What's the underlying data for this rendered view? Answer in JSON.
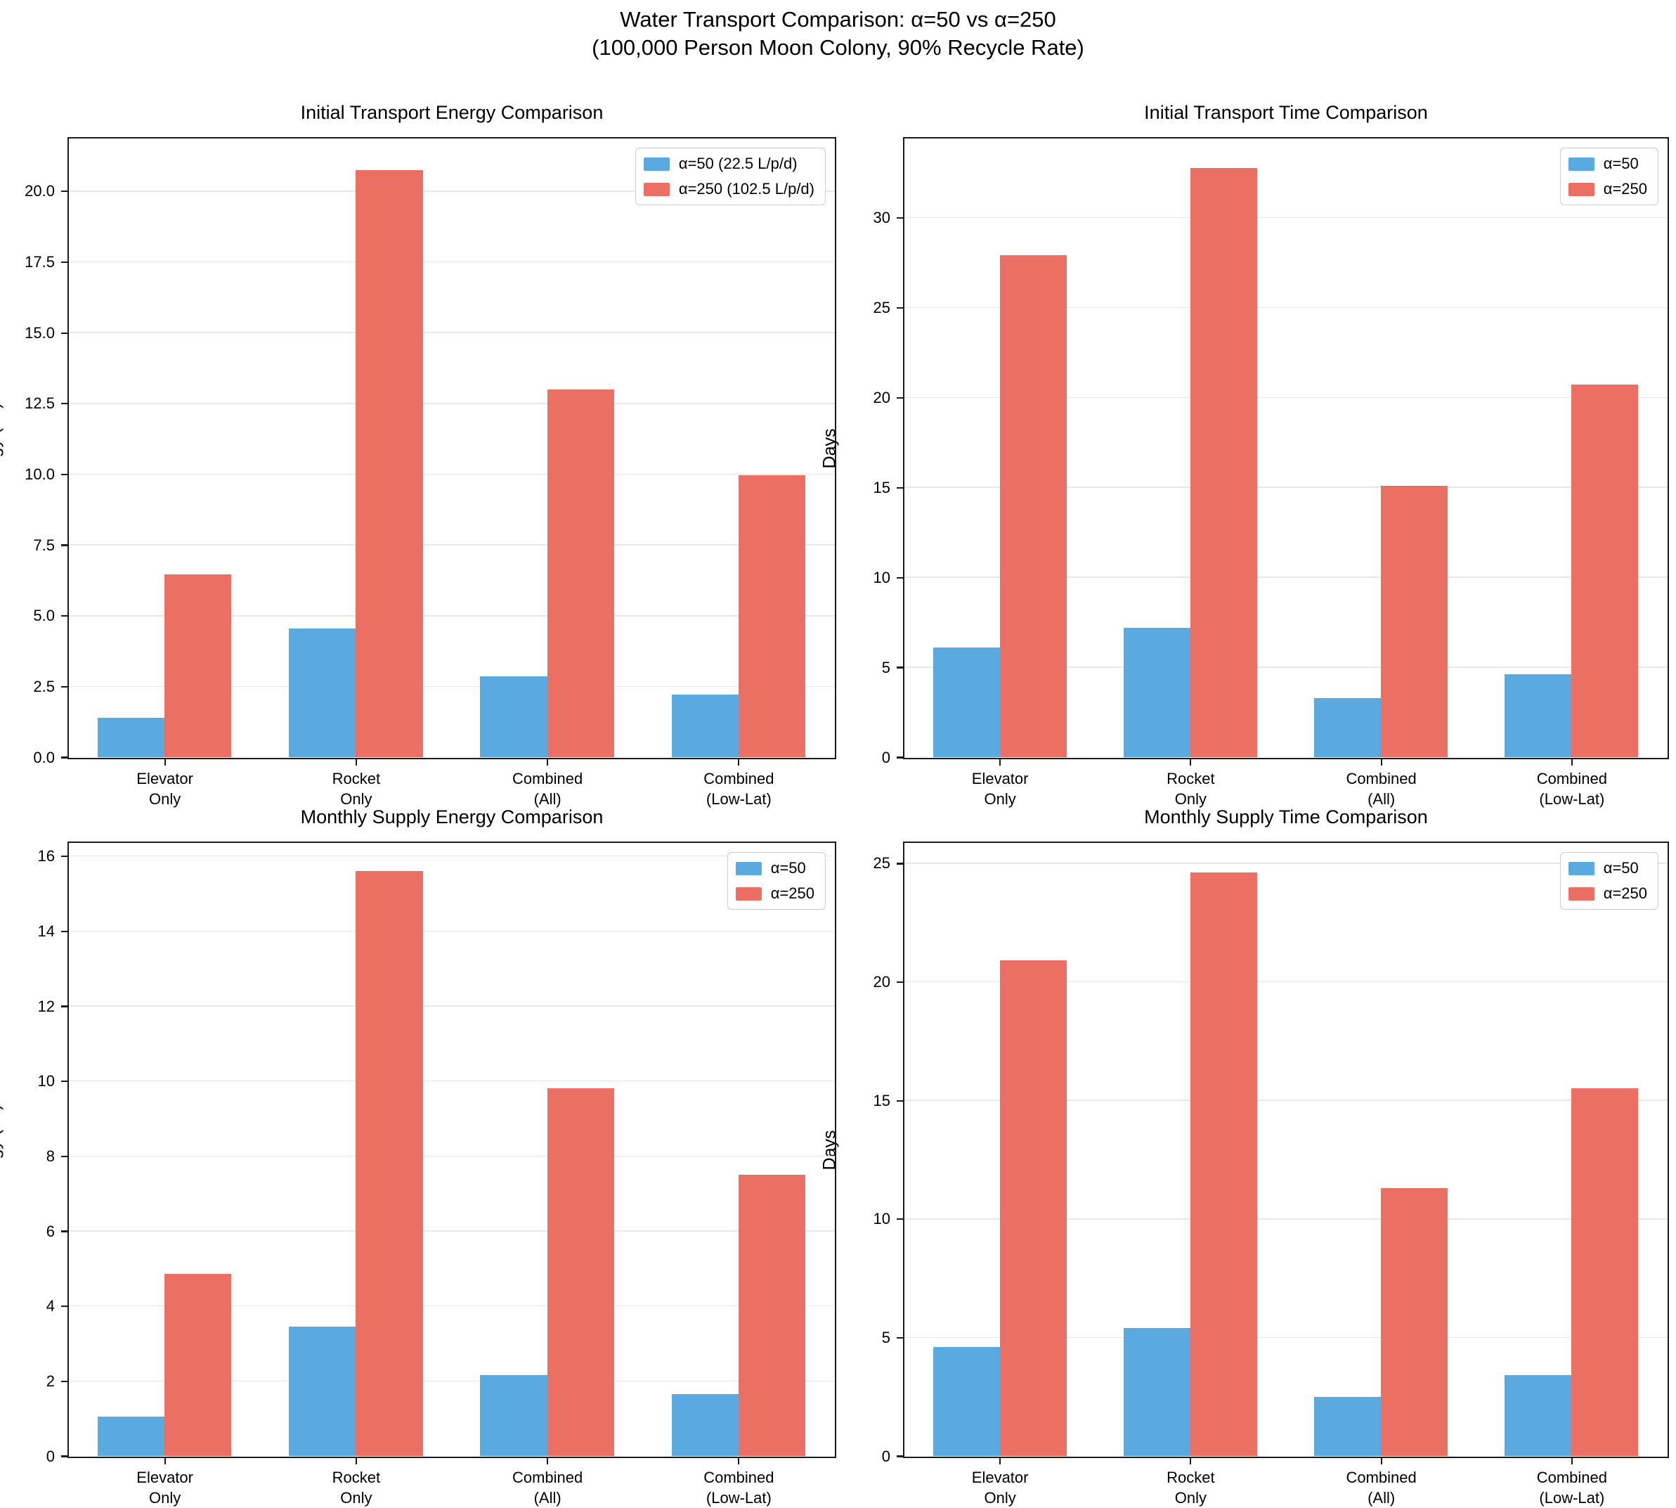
{
  "suptitle": {
    "line1": "Water Transport Comparison: α=50 vs α=250",
    "line2": "(100,000 Person Moon Colony, 90% Recycle Rate)"
  },
  "colors": {
    "alpha50": "#5AAADF",
    "alpha250": "#EC6F64",
    "gridline": "#e8e8e8",
    "spine": "#1b1b1b",
    "background": "#ffffff"
  },
  "chart_data": [
    {
      "type": "bar",
      "title": "Initial Transport Energy Comparison",
      "ylabel": "Energy (TJ)",
      "xlabel": "",
      "categories": [
        "Elevator\nOnly",
        "Rocket\nOnly",
        "Combined\n(All)",
        "Combined\n(Low-Lat)"
      ],
      "series": [
        {
          "name": "α=50 (22.5 L/p/d)",
          "color": "#5AAADF",
          "values": [
            1.4,
            4.55,
            2.85,
            2.2
          ]
        },
        {
          "name": "α=250 (102.5 L/p/d)",
          "color": "#EC6F64",
          "values": [
            6.45,
            20.75,
            13.0,
            9.95
          ]
        }
      ],
      "ylim": [
        0,
        21.86
      ],
      "yticks": [
        0,
        2.5,
        5,
        7.5,
        10,
        12.5,
        15,
        17.5,
        20
      ],
      "ytick_labels": [
        "0.0",
        "2.5",
        "5.0",
        "7.5",
        "10.0",
        "12.5",
        "15.0",
        "17.5",
        "20.0"
      ],
      "grid": true,
      "legend_position": "upper right"
    },
    {
      "type": "bar",
      "title": "Initial Transport Time Comparison",
      "ylabel": "Days",
      "xlabel": "",
      "categories": [
        "Elevator\nOnly",
        "Rocket\nOnly",
        "Combined\n(All)",
        "Combined\n(Low-Lat)"
      ],
      "series": [
        {
          "name": "α=50",
          "color": "#5AAADF",
          "values": [
            6.1,
            7.2,
            3.3,
            4.6
          ]
        },
        {
          "name": "α=250",
          "color": "#EC6F64",
          "values": [
            27.9,
            32.75,
            15.1,
            20.7
          ]
        }
      ],
      "ylim": [
        0,
        34.4
      ],
      "yticks": [
        0,
        5,
        10,
        15,
        20,
        25,
        30
      ],
      "ytick_labels": [
        "0",
        "5",
        "10",
        "15",
        "20",
        "25",
        "30"
      ],
      "grid": true,
      "legend_position": "upper right"
    },
    {
      "type": "bar",
      "title": "Monthly Supply Energy Comparison",
      "ylabel": "Energy (TJ)",
      "xlabel": "",
      "categories": [
        "Elevator\nOnly",
        "Rocket\nOnly",
        "Combined\n(All)",
        "Combined\n(Low-Lat)"
      ],
      "series": [
        {
          "name": "α=50",
          "color": "#5AAADF",
          "values": [
            1.05,
            3.45,
            2.15,
            1.65
          ]
        },
        {
          "name": "α=250",
          "color": "#EC6F64",
          "values": [
            4.85,
            15.6,
            9.8,
            7.5
          ]
        }
      ],
      "ylim": [
        0,
        16.35
      ],
      "yticks": [
        0,
        2,
        4,
        6,
        8,
        10,
        12,
        14,
        16
      ],
      "ytick_labels": [
        "0",
        "2",
        "4",
        "6",
        "8",
        "10",
        "12",
        "14",
        "16"
      ],
      "grid": true,
      "legend_position": "upper right"
    },
    {
      "type": "bar",
      "title": "Monthly Supply Time Comparison",
      "ylabel": "Days",
      "xlabel": "",
      "categories": [
        "Elevator\nOnly",
        "Rocket\nOnly",
        "Combined\n(All)",
        "Combined\n(Low-Lat)"
      ],
      "series": [
        {
          "name": "α=50",
          "color": "#5AAADF",
          "values": [
            4.6,
            5.4,
            2.5,
            3.4
          ]
        },
        {
          "name": "α=250",
          "color": "#EC6F64",
          "values": [
            20.9,
            24.6,
            11.3,
            15.5
          ]
        }
      ],
      "ylim": [
        0,
        25.86
      ],
      "yticks": [
        0,
        5,
        10,
        15,
        20,
        25
      ],
      "ytick_labels": [
        "0",
        "5",
        "10",
        "15",
        "20",
        "25"
      ],
      "grid": true,
      "legend_position": "upper right"
    }
  ]
}
